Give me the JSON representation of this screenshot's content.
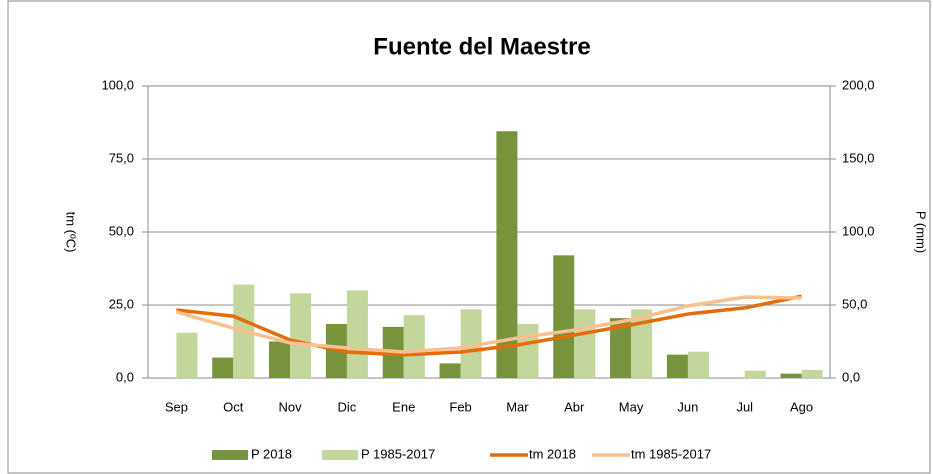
{
  "chart_data": {
    "type": "bar",
    "title": "Fuente del Maestre",
    "ylabel": "tm (ºC)",
    "y2label": "P (mm)",
    "categories": [
      "Sep",
      "Oct",
      "Nov",
      "Dic",
      "Ene",
      "Feb",
      "Mar",
      "Abr",
      "May",
      "Jun",
      "Jul",
      "Ago"
    ],
    "series": [
      {
        "name": "P 2018",
        "type": "bar",
        "axis": "y2",
        "color": "#77933c",
        "values": [
          0,
          14,
          25,
          37,
          35,
          10,
          169,
          84,
          41,
          16,
          0,
          3
        ]
      },
      {
        "name": "P 1985-2017",
        "type": "bar",
        "axis": "y2",
        "color": "#c3d69b",
        "values": [
          31,
          64,
          58,
          60,
          43,
          47,
          37,
          47,
          47,
          18,
          5,
          5.5
        ]
      },
      {
        "name": "tm 2018",
        "type": "line",
        "color": "#e46c0a",
        "values": [
          23.3,
          21.2,
          13,
          8.9,
          7.9,
          8.9,
          11.3,
          14.7,
          18.2,
          21.9,
          24,
          28
        ]
      },
      {
        "name": "tm 1985-2017",
        "type": "line",
        "color": "#fac090",
        "values": [
          22.6,
          17.1,
          12,
          10.3,
          8.9,
          10.3,
          13.7,
          16.4,
          19.9,
          24.7,
          27.7,
          27.4
        ]
      }
    ],
    "ylim": [
      0,
      100
    ],
    "yticks": [
      {
        "value": 0,
        "label": "0,0"
      },
      {
        "value": 25,
        "label": "25,0"
      },
      {
        "value": 50,
        "label": "50,0"
      },
      {
        "value": 75,
        "label": "75,0"
      },
      {
        "value": 100,
        "label": "100,0"
      }
    ],
    "y2lim": [
      0,
      200
    ],
    "y2ticks": [
      {
        "value": 0,
        "label": "0,0"
      },
      {
        "value": 50,
        "label": "50,0"
      },
      {
        "value": 100,
        "label": "100,0"
      },
      {
        "value": 150,
        "label": "150,0"
      },
      {
        "value": 200,
        "label": "200,0"
      }
    ],
    "grid": true,
    "legend": "bottom"
  }
}
